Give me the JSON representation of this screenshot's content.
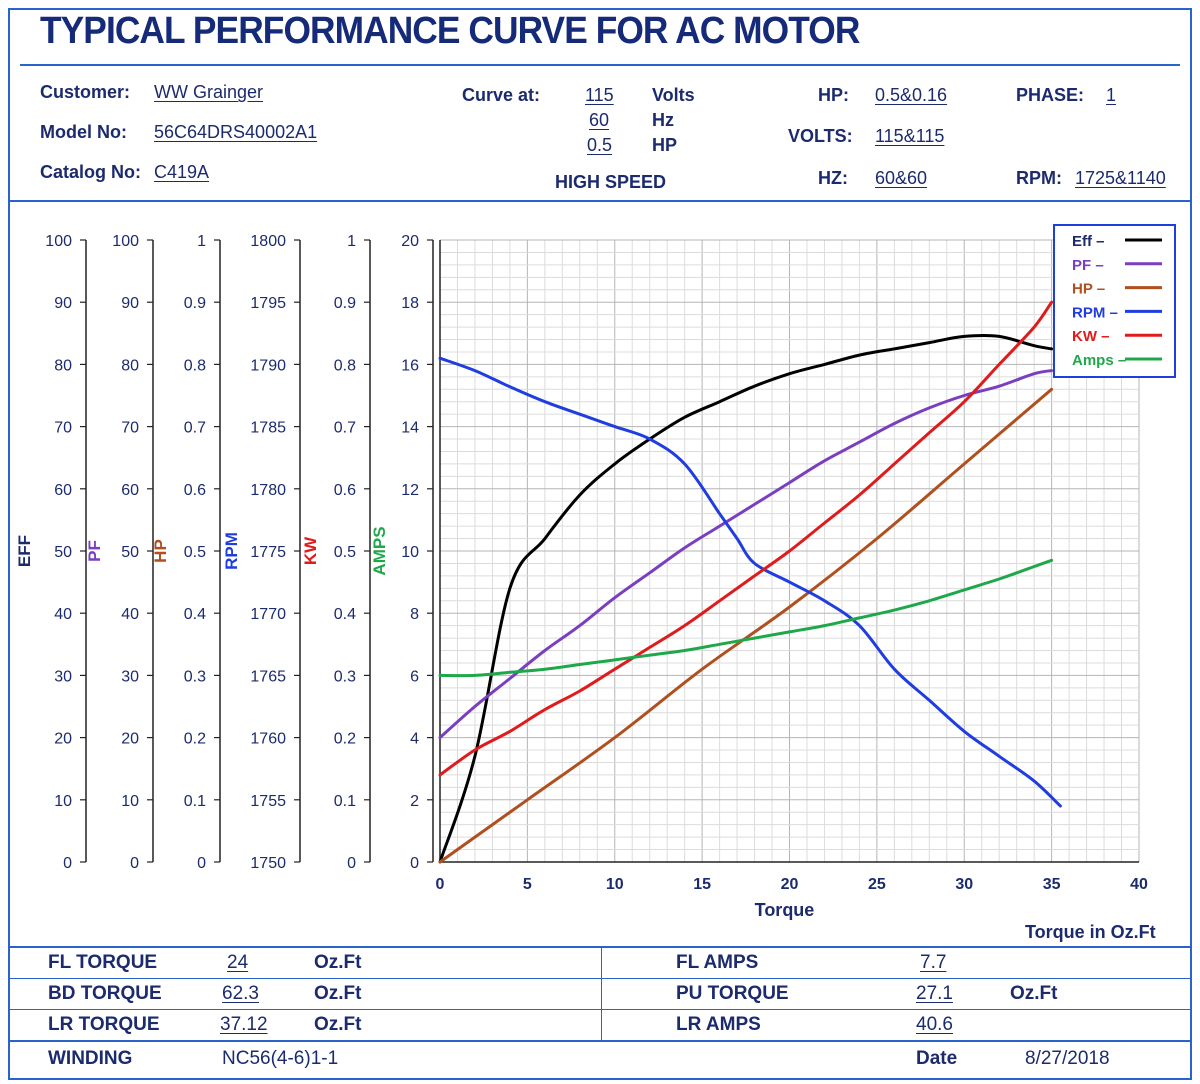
{
  "title": "TYPICAL PERFORMANCE CURVE FOR AC MOTOR",
  "header": {
    "customer_label": "Customer:",
    "customer": "WW Grainger",
    "model_label": "Model No:",
    "model": "56C64DRS40002A1",
    "catalog_label": "Catalog No:",
    "catalog": "C419A",
    "curve_at_label": "Curve at:",
    "curve_volts": "115",
    "curve_volts_unit": "Volts",
    "curve_hz": "60",
    "curve_hz_unit": "Hz",
    "curve_hp": "0.5",
    "curve_hp_unit": "HP",
    "speed": "HIGH SPEED",
    "hp_label": "HP:",
    "hp": "0.5&0.16",
    "volts_label": "VOLTS:",
    "volts": "115&115",
    "hz_label": "HZ:",
    "hz": "60&60",
    "phase_label": "PHASE:",
    "phase": "1",
    "rpm_label": "RPM:",
    "rpm": "1725&1140"
  },
  "chart_data": {
    "type": "line",
    "xlabel": "Torque",
    "xlabel_note": "Torque in Oz.Ft",
    "xlim": [
      0,
      40
    ],
    "x_ticks": [
      0,
      5,
      10,
      15,
      20,
      25,
      30,
      35,
      40
    ],
    "grid": true,
    "legend_position": "top-right",
    "axes": [
      {
        "name": "EFF",
        "color": "#1c2a6e",
        "ticks": [
          0,
          10,
          20,
          30,
          40,
          50,
          60,
          70,
          80,
          90,
          100
        ]
      },
      {
        "name": "PF",
        "color": "#7a3fc0",
        "ticks": [
          0,
          10,
          20,
          30,
          40,
          50,
          60,
          70,
          80,
          90,
          100
        ]
      },
      {
        "name": "HP",
        "color": "#b0501e",
        "ticks": [
          "0",
          "0.1",
          "0.2",
          "0.3",
          "0.4",
          "0.5",
          "0.6",
          "0.7",
          "0.8",
          "0.9",
          "1"
        ]
      },
      {
        "name": "RPM",
        "color": "#1f3de0",
        "ticks": [
          1750,
          1755,
          1760,
          1765,
          1770,
          1775,
          1780,
          1785,
          1790,
          1795,
          1800
        ]
      },
      {
        "name": "KW",
        "color": "#e01b1b",
        "ticks": [
          "0",
          "0.1",
          "0.2",
          "0.3",
          "0.4",
          "0.5",
          "0.6",
          "0.7",
          "0.8",
          "0.9",
          "1"
        ]
      },
      {
        "name": "AMPS",
        "color": "#1fa84a",
        "ticks": [
          0,
          2,
          4,
          6,
          8,
          10,
          12,
          14,
          16,
          18,
          20
        ]
      }
    ],
    "series": [
      {
        "name": "Eff",
        "color": "#000000",
        "axis": "EFF",
        "x": [
          0,
          2,
          4,
          6,
          8,
          10,
          12,
          14,
          16,
          18,
          20,
          22,
          24,
          26,
          28,
          30,
          32,
          34,
          35
        ],
        "y": [
          0,
          17,
          44,
          52,
          59,
          64,
          68,
          71.5,
          74,
          76.5,
          78.5,
          80,
          81.5,
          82.5,
          83.5,
          84.5,
          84.5,
          83,
          82.5
        ]
      },
      {
        "name": "PF",
        "color": "#7a3fc0",
        "axis": "PF",
        "x": [
          0,
          2,
          4,
          6,
          8,
          10,
          12,
          14,
          16,
          18,
          20,
          22,
          24,
          26,
          28,
          30,
          32,
          34,
          35
        ],
        "y": [
          20,
          25,
          29.5,
          34,
          38,
          42.5,
          46.5,
          50.5,
          54,
          57.5,
          61,
          64.5,
          67.5,
          70.5,
          73,
          75,
          76.5,
          78.5,
          79
        ]
      },
      {
        "name": "HP",
        "color": "#b0501e",
        "axis": "HP",
        "x": [
          0,
          5,
          10,
          15,
          20,
          25,
          30,
          35
        ],
        "y": [
          0,
          0.1,
          0.2,
          0.31,
          0.41,
          0.52,
          0.64,
          0.76
        ]
      },
      {
        "name": "RPM",
        "color": "#1f3de0",
        "axis": "RPM",
        "x": [
          0,
          2,
          4,
          6,
          8,
          10,
          12,
          14,
          16,
          17,
          18,
          20,
          22,
          24,
          26,
          28,
          30,
          32,
          34,
          35.5
        ],
        "y": [
          1790.5,
          1789.5,
          1788.2,
          1787,
          1786,
          1785,
          1784,
          1782,
          1778,
          1776,
          1774,
          1772.5,
          1771,
          1769,
          1765.5,
          1763,
          1760.5,
          1758.5,
          1756.5,
          1754.5
        ]
      },
      {
        "name": "KW",
        "color": "#e01b1b",
        "axis": "KW",
        "x": [
          0,
          2,
          4,
          6,
          8,
          10,
          12,
          14,
          16,
          18,
          20,
          22,
          24,
          26,
          28,
          30,
          32,
          34,
          35
        ],
        "y": [
          0.14,
          0.18,
          0.21,
          0.245,
          0.275,
          0.31,
          0.345,
          0.38,
          0.42,
          0.46,
          0.5,
          0.545,
          0.59,
          0.64,
          0.69,
          0.74,
          0.8,
          0.86,
          0.9
        ]
      },
      {
        "name": "Amps",
        "color": "#1fa84a",
        "axis": "AMPS",
        "x": [
          0,
          2,
          4,
          6,
          8,
          10,
          12,
          14,
          16,
          18,
          20,
          22,
          24,
          26,
          28,
          30,
          32,
          34,
          35
        ],
        "y": [
          6.0,
          6.0,
          6.1,
          6.2,
          6.35,
          6.5,
          6.65,
          6.8,
          7.0,
          7.2,
          7.4,
          7.6,
          7.85,
          8.1,
          8.4,
          8.75,
          9.1,
          9.5,
          9.7
        ]
      }
    ]
  },
  "footer": {
    "fl_torque_label": "FL TORQUE",
    "fl_torque": "24",
    "fl_torque_unit": "Oz.Ft",
    "bd_torque_label": "BD TORQUE",
    "bd_torque": "62.3",
    "bd_torque_unit": "Oz.Ft",
    "lr_torque_label": "LR TORQUE",
    "lr_torque": "37.12",
    "lr_torque_unit": "Oz.Ft",
    "winding_label": "WINDING",
    "winding": "NC56(4-6)1-1",
    "fl_amps_label": "FL AMPS",
    "fl_amps": "7.7",
    "pu_torque_label": "PU TORQUE",
    "pu_torque": "27.1",
    "pu_torque_unit": "Oz.Ft",
    "lr_amps_label": "LR AMPS",
    "lr_amps": "40.6",
    "date_label": "Date",
    "date": "8/27/2018"
  }
}
